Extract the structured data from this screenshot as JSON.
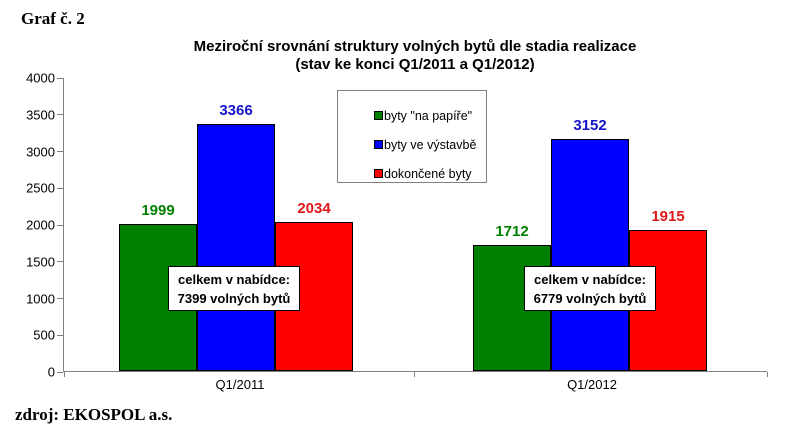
{
  "page": {
    "corner_label": "Graf č. 2",
    "source": "zdroj: EKOSPOL a.s."
  },
  "chart_data": {
    "type": "bar",
    "title": "Meziroční srovnání struktury volných bytů dle stadia realizace",
    "subtitle": "(stav ke konci Q1/2011 a Q1/2012)",
    "categories": [
      "Q1/2011",
      "Q1/2012"
    ],
    "series": [
      {
        "name": "byty \"na papíře\"",
        "color": "#008000",
        "label_color": "#008000",
        "values": [
          1999,
          1712
        ]
      },
      {
        "name": "byty ve výstavbě",
        "color": "#0000FF",
        "label_color": "#1515CC",
        "values": [
          3366,
          3152
        ]
      },
      {
        "name": "dokončené byty",
        "color": "#FF0000",
        "label_color": "#E01818",
        "values": [
          2034,
          1915
        ]
      }
    ],
    "ylim": [
      0,
      4000
    ],
    "yticks": [
      0,
      500,
      1000,
      1500,
      2000,
      2500,
      3000,
      3500,
      4000
    ],
    "grid": false,
    "legend_position": "inside-top-center",
    "annotations": [
      {
        "category": "Q1/2011",
        "line1": "celkem v nabídce:",
        "line2": "7399 volných bytů",
        "total": 7399
      },
      {
        "category": "Q1/2012",
        "line1": "celkem v nabídce:",
        "line2": "6779 volných bytů",
        "total": 6779
      }
    ]
  }
}
